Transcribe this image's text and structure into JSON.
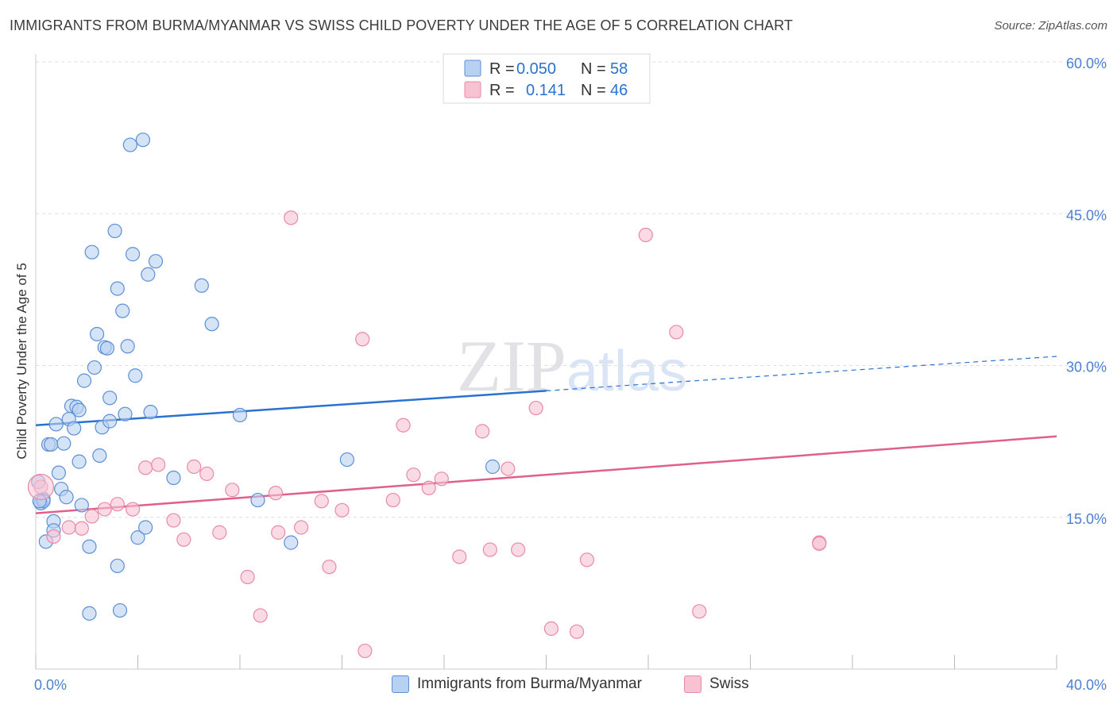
{
  "chart_data": {
    "type": "scatter",
    "title": "IMMIGRANTS FROM BURMA/MYANMAR VS SWISS CHILD POVERTY UNDER THE AGE OF 5 CORRELATION CHART",
    "source": "Source: ZipAtlas.com",
    "ylabel": "Child Poverty Under the Age of 5",
    "xlabel": "",
    "xlim": [
      0,
      40
    ],
    "ylim": [
      0,
      60
    ],
    "x_tick_labels": [
      "0.0%",
      "40.0%"
    ],
    "y_ticks": [
      15,
      30,
      45,
      60
    ],
    "y_tick_labels": [
      "15.0%",
      "30.0%",
      "45.0%",
      "60.0%"
    ],
    "grid": true,
    "watermark": "ZIPatlas",
    "legend": {
      "position": "top-center",
      "rows": [
        {
          "r_label": "R =",
          "r_value": "0.050",
          "n_label": "N =",
          "n_value": "58"
        },
        {
          "r_label": "R =",
          "r_value": "0.141",
          "n_label": "N =",
          "n_value": "46"
        }
      ]
    },
    "series": [
      {
        "name": "Immigrants from Burma/Myanmar",
        "color": "#5b8fd6",
        "fill": "#b9d1f1",
        "line_color": "#2a72d0",
        "trend": {
          "x0": 0,
          "y0": 24.1,
          "x1": 40,
          "y1": 30.9,
          "solid_until": 20
        },
        "points": [
          [
            0.1,
            18.5
          ],
          [
            0.2,
            16.4
          ],
          [
            0.3,
            16.8
          ],
          [
            0.3,
            16.6
          ],
          [
            0.4,
            12.6
          ],
          [
            0.5,
            22.2
          ],
          [
            0.6,
            22.2
          ],
          [
            0.7,
            14.6
          ],
          [
            0.7,
            13.7
          ],
          [
            0.8,
            24.2
          ],
          [
            0.9,
            19.4
          ],
          [
            1.0,
            17.8
          ],
          [
            1.1,
            22.3
          ],
          [
            1.2,
            17.0
          ],
          [
            1.3,
            24.7
          ],
          [
            1.4,
            26.0
          ],
          [
            1.5,
            23.8
          ],
          [
            1.6,
            25.9
          ],
          [
            1.7,
            25.6
          ],
          [
            1.7,
            20.5
          ],
          [
            1.8,
            16.2
          ],
          [
            1.9,
            28.5
          ],
          [
            2.1,
            12.1
          ],
          [
            2.1,
            5.5
          ],
          [
            2.2,
            41.2
          ],
          [
            2.3,
            29.8
          ],
          [
            2.4,
            33.1
          ],
          [
            2.5,
            21.1
          ],
          [
            2.6,
            23.9
          ],
          [
            2.7,
            31.8
          ],
          [
            2.8,
            31.7
          ],
          [
            2.9,
            24.5
          ],
          [
            2.9,
            26.8
          ],
          [
            3.1,
            43.3
          ],
          [
            3.2,
            37.6
          ],
          [
            3.2,
            10.2
          ],
          [
            3.3,
            5.8
          ],
          [
            3.4,
            35.4
          ],
          [
            3.5,
            25.2
          ],
          [
            3.6,
            31.9
          ],
          [
            3.7,
            51.8
          ],
          [
            3.8,
            41.0
          ],
          [
            3.9,
            29.0
          ],
          [
            4.0,
            13.0
          ],
          [
            4.2,
            52.3
          ],
          [
            4.3,
            14.0
          ],
          [
            4.4,
            39.0
          ],
          [
            4.5,
            25.4
          ],
          [
            4.7,
            40.3
          ],
          [
            5.4,
            18.9
          ],
          [
            6.5,
            37.9
          ],
          [
            6.9,
            34.1
          ],
          [
            8.0,
            25.1
          ],
          [
            8.7,
            16.7
          ],
          [
            10.0,
            12.5
          ],
          [
            12.2,
            20.7
          ],
          [
            17.9,
            20.0
          ],
          [
            0.15,
            16.6
          ]
        ]
      },
      {
        "name": "Swiss",
        "color": "#e88aa6",
        "fill": "#f7c3d3",
        "line_color": "#e0608c",
        "trend": {
          "x0": 0,
          "y0": 15.4,
          "x1": 40,
          "y1": 23.0
        },
        "points": [
          [
            0.2,
            18.0
          ],
          [
            0.7,
            13.1
          ],
          [
            1.3,
            14.0
          ],
          [
            1.8,
            13.9
          ],
          [
            2.2,
            15.1
          ],
          [
            2.7,
            15.8
          ],
          [
            3.2,
            16.3
          ],
          [
            3.8,
            15.8
          ],
          [
            4.3,
            19.9
          ],
          [
            4.8,
            20.2
          ],
          [
            5.4,
            14.7
          ],
          [
            5.8,
            12.8
          ],
          [
            6.2,
            20.0
          ],
          [
            6.7,
            19.3
          ],
          [
            7.2,
            13.5
          ],
          [
            7.7,
            17.7
          ],
          [
            8.3,
            9.1
          ],
          [
            8.8,
            5.3
          ],
          [
            9.4,
            17.4
          ],
          [
            9.5,
            13.5
          ],
          [
            10.0,
            44.6
          ],
          [
            10.4,
            14.0
          ],
          [
            11.2,
            16.6
          ],
          [
            11.5,
            10.1
          ],
          [
            12.0,
            15.7
          ],
          [
            12.8,
            32.6
          ],
          [
            12.9,
            1.8
          ],
          [
            14.0,
            16.7
          ],
          [
            14.4,
            24.1
          ],
          [
            14.8,
            19.2
          ],
          [
            15.4,
            17.9
          ],
          [
            15.9,
            18.8
          ],
          [
            16.6,
            11.1
          ],
          [
            17.5,
            23.5
          ],
          [
            17.8,
            11.8
          ],
          [
            18.5,
            19.8
          ],
          [
            18.9,
            11.8
          ],
          [
            19.6,
            25.8
          ],
          [
            20.2,
            4.0
          ],
          [
            21.2,
            3.7
          ],
          [
            21.6,
            10.8
          ],
          [
            23.9,
            42.9
          ],
          [
            25.1,
            33.3
          ],
          [
            26.0,
            5.7
          ],
          [
            30.7,
            12.5
          ],
          [
            30.7,
            12.4
          ]
        ]
      }
    ]
  },
  "bottom_legend": {
    "items": [
      {
        "label": "Immigrants from Burma/Myanmar"
      },
      {
        "label": "Swiss"
      }
    ]
  }
}
